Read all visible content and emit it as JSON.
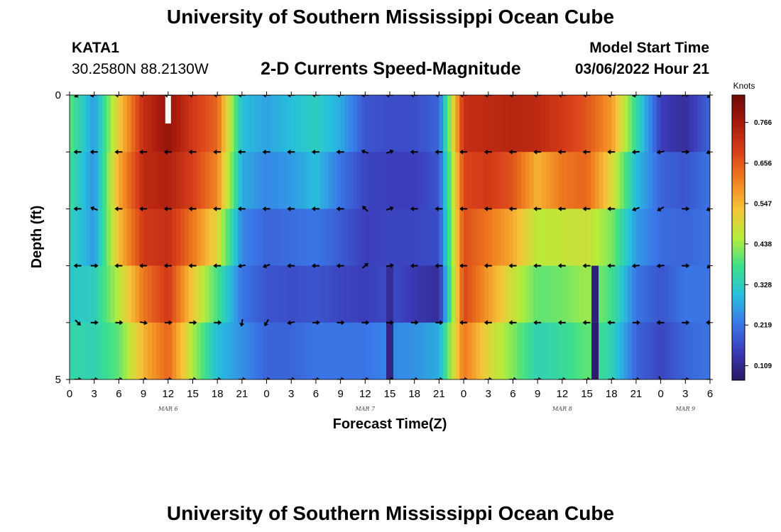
{
  "header": {
    "title": "University of Southern Mississippi Ocean Cube",
    "station": "KATA1",
    "coords": "30.2580N  88.2130W",
    "subtitle": "2-D Currents Speed-Magnitude",
    "model_start_label": "Model Start Time",
    "model_start_value": "03/06/2022 Hour 21"
  },
  "footer": {
    "title": "University of Southern Mississippi Ocean Cube"
  },
  "chart_data": {
    "type": "heatmap",
    "title": "2-D Currents Speed-Magnitude",
    "xlabel": "Forecast Time(Z)",
    "ylabel": "Depth (ft)",
    "x_hours": [
      0,
      3,
      6,
      9,
      12,
      15,
      18,
      21,
      24,
      27,
      30,
      33,
      36,
      39,
      42,
      45,
      48,
      51,
      54,
      57,
      60,
      63,
      66,
      69,
      72,
      75,
      78
    ],
    "x_tick_labels": [
      "0",
      "3",
      "6",
      "9",
      "12",
      "15",
      "18",
      "21",
      "0",
      "3",
      "6",
      "9",
      "12",
      "15",
      "18",
      "21",
      "0",
      "3",
      "6",
      "9",
      "12",
      "15",
      "18",
      "21",
      "0",
      "3",
      "6"
    ],
    "date_labels": [
      {
        "text": "MAR 6",
        "hour": 12
      },
      {
        "text": "MAR 7",
        "hour": 36
      },
      {
        "text": "MAR 8",
        "hour": 60
      },
      {
        "text": "MAR 9",
        "hour": 75
      }
    ],
    "y_tick_labels": [
      {
        "text": "0",
        "depth": 0
      },
      {
        "text": "5",
        "depth": 5
      }
    ],
    "depth_range": [
      0,
      5
    ],
    "depth_levels": [
      0,
      1,
      2,
      3,
      4,
      5
    ],
    "colorbar": {
      "unit": "Knots",
      "ticks": [
        "0.766",
        "0.656",
        "0.547",
        "0.438",
        "0.328",
        "0.219",
        "0.109"
      ],
      "tick_values": [
        0.766,
        0.656,
        0.547,
        0.438,
        0.328,
        0.219,
        0.109
      ],
      "range": [
        0.07,
        0.84
      ],
      "stops": [
        "#2a1660",
        "#3b3bb8",
        "#3a78e8",
        "#27c0dc",
        "#3ee08a",
        "#b7ec3a",
        "#f6c43a",
        "#f08020",
        "#d8401a",
        "#a81a0c",
        "#6e0a08"
      ]
    },
    "rows": [
      {
        "depth_band": "0-1 ft",
        "hours": [
          0,
          3,
          6,
          9,
          12,
          15,
          18,
          21,
          24,
          27,
          30,
          33,
          36,
          39,
          42,
          45,
          48,
          51,
          54,
          57,
          60,
          63,
          66,
          69,
          72,
          75,
          78
        ],
        "speeds": [
          0.4,
          0.26,
          0.52,
          0.72,
          0.79,
          0.7,
          0.64,
          0.3,
          0.27,
          0.3,
          0.33,
          0.28,
          0.18,
          0.17,
          0.17,
          0.2,
          0.72,
          0.73,
          0.74,
          0.73,
          0.7,
          0.66,
          0.58,
          0.36,
          0.15,
          0.12,
          0.2
        ]
      },
      {
        "depth_band": "1-2 ft",
        "hours": [
          0,
          3,
          6,
          9,
          12,
          15,
          18,
          21,
          24,
          27,
          30,
          33,
          36,
          39,
          42,
          45,
          48,
          51,
          54,
          57,
          60,
          63,
          66,
          69,
          72,
          75,
          78
        ],
        "speeds": [
          0.37,
          0.25,
          0.56,
          0.73,
          0.75,
          0.69,
          0.6,
          0.28,
          0.24,
          0.26,
          0.3,
          0.22,
          0.16,
          0.15,
          0.15,
          0.18,
          0.68,
          0.7,
          0.66,
          0.55,
          0.62,
          0.64,
          0.5,
          0.3,
          0.2,
          0.18,
          0.22
        ]
      },
      {
        "depth_band": "2-3 ft",
        "hours": [
          0,
          3,
          6,
          9,
          12,
          15,
          18,
          21,
          24,
          27,
          30,
          33,
          36,
          39,
          42,
          45,
          48,
          51,
          54,
          57,
          60,
          63,
          66,
          69,
          72,
          75,
          78
        ],
        "speeds": [
          0.34,
          0.26,
          0.54,
          0.7,
          0.72,
          0.62,
          0.5,
          0.24,
          0.2,
          0.21,
          0.22,
          0.19,
          0.15,
          0.16,
          0.16,
          0.17,
          0.67,
          0.62,
          0.56,
          0.46,
          0.47,
          0.48,
          0.42,
          0.26,
          0.21,
          0.2,
          0.22
        ]
      },
      {
        "depth_band": "3-4 ft",
        "hours": [
          0,
          3,
          6,
          9,
          12,
          15,
          18,
          21,
          24,
          27,
          30,
          33,
          36,
          39,
          42,
          45,
          48,
          51,
          54,
          57,
          60,
          63,
          66,
          69,
          72,
          75,
          78
        ],
        "speeds": [
          0.32,
          0.33,
          0.46,
          0.62,
          0.7,
          0.52,
          0.38,
          0.22,
          0.18,
          0.17,
          0.18,
          0.16,
          0.15,
          0.17,
          0.14,
          0.12,
          0.68,
          0.58,
          0.48,
          0.4,
          0.41,
          0.44,
          0.38,
          0.22,
          0.18,
          0.22,
          0.22
        ]
      },
      {
        "depth_band": "4-5 ft",
        "hours": [
          0,
          3,
          6,
          9,
          12,
          15,
          18,
          21,
          24,
          27,
          30,
          33,
          36,
          39,
          42,
          45,
          48,
          51,
          54,
          57,
          60,
          63,
          66,
          69,
          72,
          75,
          78
        ],
        "speeds": [
          0.35,
          0.34,
          0.4,
          0.55,
          0.64,
          0.45,
          0.3,
          0.25,
          0.2,
          0.2,
          0.22,
          0.22,
          0.22,
          0.24,
          0.25,
          0.28,
          0.62,
          0.5,
          0.42,
          0.34,
          0.36,
          0.4,
          0.34,
          0.2,
          0.16,
          0.2,
          0.22
        ]
      }
    ],
    "dark_columns": [
      {
        "hour": 39,
        "depth_from": 4,
        "depth_to": 5,
        "speed": 0.1
      },
      {
        "hour": 39,
        "depth_from": 3,
        "depth_to": 4,
        "speed": 0.12
      },
      {
        "hour": 64,
        "depth_from": 4,
        "depth_to": 5,
        "speed": 0.08
      },
      {
        "hour": 64,
        "depth_from": 3,
        "depth_to": 4,
        "speed": 0.09
      }
    ],
    "missing": [
      {
        "hour": 12,
        "depth_from": 0,
        "depth_to": 0.5
      }
    ],
    "arrows": {
      "hours": [
        1,
        3,
        6,
        9,
        12,
        15,
        18,
        21,
        24,
        27,
        30,
        33,
        36,
        39,
        42,
        45,
        48,
        51,
        54,
        57,
        60,
        63,
        66,
        69,
        72,
        75,
        78
      ],
      "depths": [
        0,
        1,
        2,
        3,
        4,
        5
      ],
      "directions_deg": [
        [
          210,
          190,
          180,
          180,
          180,
          180,
          180,
          180,
          180,
          180,
          180,
          180,
          180,
          180,
          180,
          180,
          180,
          180,
          180,
          180,
          180,
          180,
          180,
          190,
          200,
          10,
          225
        ],
        [
          180,
          180,
          180,
          180,
          180,
          180,
          180,
          180,
          180,
          180,
          180,
          180,
          160,
          20,
          180,
          180,
          180,
          180,
          180,
          180,
          180,
          180,
          180,
          185,
          190,
          0,
          200
        ],
        [
          180,
          160,
          180,
          180,
          180,
          180,
          180,
          180,
          180,
          180,
          180,
          180,
          135,
          20,
          180,
          180,
          180,
          180,
          180,
          180,
          180,
          180,
          180,
          200,
          210,
          0,
          205
        ],
        [
          180,
          0,
          180,
          180,
          180,
          180,
          180,
          190,
          200,
          180,
          180,
          180,
          40,
          10,
          180,
          180,
          180,
          180,
          180,
          180,
          180,
          180,
          180,
          185,
          185,
          0,
          220
        ],
        [
          315,
          0,
          0,
          350,
          0,
          0,
          0,
          260,
          240,
          190,
          0,
          0,
          0,
          0,
          0,
          0,
          180,
          180,
          180,
          180,
          180,
          180,
          180,
          0,
          180,
          0,
          180
        ],
        [
          0,
          0,
          0,
          0,
          0,
          0,
          0,
          0,
          0,
          0,
          0,
          0,
          0,
          0,
          0,
          0,
          0,
          0,
          0,
          0,
          0,
          0,
          0,
          0,
          300,
          0,
          0
        ]
      ]
    }
  }
}
